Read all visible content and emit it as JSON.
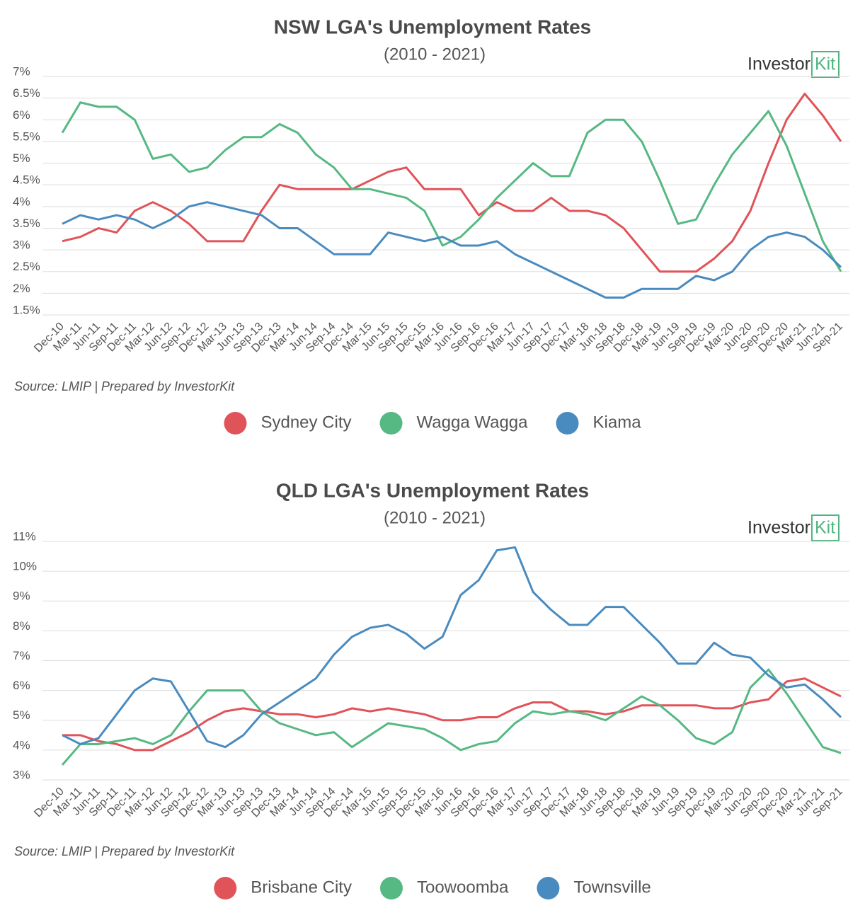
{
  "chart_data": [
    {
      "type": "line",
      "title": "NSW LGA's Unemployment Rates",
      "subtitle": "(2010 - 2021)",
      "logo": "Investor",
      "logo_accent": "Kit",
      "source": "Source: LMIP | Prepared by InvestorKit",
      "categories": [
        "Dec-10",
        "Mar-11",
        "Jun-11",
        "Sep-11",
        "Dec-11",
        "Mar-12",
        "Jun-12",
        "Sep-12",
        "Dec-12",
        "Mar-13",
        "Jun-13",
        "Sep-13",
        "Dec-13",
        "Mar-14",
        "Jun-14",
        "Sep-14",
        "Dec-14",
        "Mar-15",
        "Jun-15",
        "Sep-15",
        "Dec-15",
        "Mar-16",
        "Jun-16",
        "Sep-16",
        "Dec-16",
        "Mar-17",
        "Jun-17",
        "Sep-17",
        "Dec-17",
        "Mar-18",
        "Jun-18",
        "Sep-18",
        "Dec-18",
        "Mar-19",
        "Jun-19",
        "Sep-19",
        "Dec-19",
        "Mar-20",
        "Jun-20",
        "Sep-20",
        "Dec-20",
        "Mar-21",
        "Jun-21",
        "Sep-21"
      ],
      "series": [
        {
          "name": "Sydney City",
          "color": "#e05358",
          "values": [
            3.2,
            3.3,
            3.5,
            3.4,
            3.9,
            4.1,
            3.9,
            3.6,
            3.2,
            3.2,
            3.2,
            3.9,
            4.5,
            4.4,
            4.4,
            4.4,
            4.4,
            4.6,
            4.8,
            4.9,
            4.4,
            4.4,
            4.4,
            3.8,
            4.1,
            3.9,
            3.9,
            4.2,
            3.9,
            3.9,
            3.8,
            3.5,
            3.0,
            2.5,
            2.5,
            2.5,
            2.8,
            3.2,
            3.9,
            5.0,
            6.0,
            6.6,
            6.1,
            5.5
          ]
        },
        {
          "name": "Wagga Wagga",
          "color": "#56b883",
          "values": [
            5.7,
            6.4,
            6.3,
            6.3,
            6.0,
            5.1,
            5.2,
            4.8,
            4.9,
            5.3,
            5.6,
            5.6,
            5.9,
            5.7,
            5.2,
            4.9,
            4.4,
            4.4,
            4.3,
            4.2,
            3.9,
            3.1,
            3.3,
            3.7,
            4.2,
            4.6,
            5.0,
            4.7,
            4.7,
            5.7,
            6.0,
            6.0,
            5.5,
            4.6,
            3.6,
            3.7,
            4.5,
            5.2,
            5.7,
            6.2,
            5.4,
            4.3,
            3.2,
            2.5
          ]
        },
        {
          "name": "Kiama",
          "color": "#4a8bbf",
          "values": [
            3.6,
            3.8,
            3.7,
            3.8,
            3.7,
            3.5,
            3.7,
            4.0,
            4.1,
            4.0,
            3.9,
            3.8,
            3.5,
            3.5,
            3.2,
            2.9,
            2.9,
            2.9,
            3.4,
            3.3,
            3.2,
            3.3,
            3.1,
            3.1,
            3.2,
            2.9,
            2.7,
            2.5,
            2.3,
            2.1,
            1.9,
            1.9,
            2.1,
            2.1,
            2.1,
            2.4,
            2.3,
            2.5,
            3.0,
            3.3,
            3.4,
            3.3,
            3.0,
            2.6
          ]
        }
      ],
      "ylim": [
        1.5,
        7
      ],
      "yticks": [
        {
          "value": 1.5,
          "label": "1.5%"
        },
        {
          "value": 2,
          "label": "2%"
        },
        {
          "value": 2.5,
          "label": "2.5%"
        },
        {
          "value": 3,
          "label": "3%"
        },
        {
          "value": 3.5,
          "label": "3.5%"
        },
        {
          "value": 4,
          "label": "4%"
        },
        {
          "value": 4.5,
          "label": "4.5%"
        },
        {
          "value": 5,
          "label": "5%"
        },
        {
          "value": 5.5,
          "label": "5.5%"
        },
        {
          "value": 6,
          "label": "6%"
        },
        {
          "value": 6.5,
          "label": "6.5%"
        },
        {
          "value": 7,
          "label": "7%"
        }
      ],
      "grid": true,
      "legend": "bottom"
    },
    {
      "type": "line",
      "title": "QLD LGA's Unemployment Rates",
      "subtitle": "(2010 - 2021)",
      "logo": "Investor",
      "logo_accent": "Kit",
      "source": "Source: LMIP | Prepared by InvestorKit",
      "categories": [
        "Dec-10",
        "Mar-11",
        "Jun-11",
        "Sep-11",
        "Dec-11",
        "Mar-12",
        "Jun-12",
        "Sep-12",
        "Dec-12",
        "Mar-13",
        "Jun-13",
        "Sep-13",
        "Dec-13",
        "Mar-14",
        "Jun-14",
        "Sep-14",
        "Dec-14",
        "Mar-15",
        "Jun-15",
        "Sep-15",
        "Dec-15",
        "Mar-16",
        "Jun-16",
        "Sep-16",
        "Dec-16",
        "Mar-17",
        "Jun-17",
        "Sep-17",
        "Dec-17",
        "Mar-18",
        "Jun-18",
        "Sep-18",
        "Dec-18",
        "Mar-19",
        "Jun-19",
        "Sep-19",
        "Dec-19",
        "Mar-20",
        "Jun-20",
        "Sep-20",
        "Dec-20",
        "Mar-21",
        "Jun-21",
        "Sep-21"
      ],
      "series": [
        {
          "name": "Brisbane City",
          "color": "#e05358",
          "values": [
            4.5,
            4.5,
            4.3,
            4.2,
            4.0,
            4.0,
            4.3,
            4.6,
            5.0,
            5.3,
            5.4,
            5.3,
            5.2,
            5.2,
            5.1,
            5.2,
            5.4,
            5.3,
            5.4,
            5.3,
            5.2,
            5.0,
            5.0,
            5.1,
            5.1,
            5.4,
            5.6,
            5.6,
            5.3,
            5.3,
            5.2,
            5.3,
            5.5,
            5.5,
            5.5,
            5.5,
            5.4,
            5.4,
            5.6,
            5.7,
            6.3,
            6.4,
            6.1,
            5.8
          ]
        },
        {
          "name": "Toowoomba",
          "color": "#56b883",
          "values": [
            3.5,
            4.2,
            4.2,
            4.3,
            4.4,
            4.2,
            4.5,
            5.3,
            6.0,
            6.0,
            6.0,
            5.3,
            4.9,
            4.7,
            4.5,
            4.6,
            4.1,
            4.5,
            4.9,
            4.8,
            4.7,
            4.4,
            4.0,
            4.2,
            4.3,
            4.9,
            5.3,
            5.2,
            5.3,
            5.2,
            5.0,
            5.4,
            5.8,
            5.5,
            5.0,
            4.4,
            4.2,
            4.6,
            6.1,
            6.7,
            5.9,
            5.0,
            4.1,
            3.9
          ]
        },
        {
          "name": "Townsville",
          "color": "#4a8bbf",
          "values": [
            4.5,
            4.2,
            4.4,
            5.2,
            6.0,
            6.4,
            6.3,
            5.3,
            4.3,
            4.1,
            4.5,
            5.2,
            5.6,
            6.0,
            6.4,
            7.2,
            7.8,
            8.1,
            8.2,
            7.9,
            7.4,
            7.8,
            9.2,
            9.7,
            10.7,
            10.8,
            9.3,
            8.7,
            8.2,
            8.2,
            8.8,
            8.8,
            8.2,
            7.6,
            6.9,
            6.9,
            7.6,
            7.2,
            7.1,
            6.5,
            6.1,
            6.2,
            5.7,
            5.1
          ]
        }
      ],
      "ylim": [
        3,
        11
      ],
      "yticks": [
        {
          "value": 3,
          "label": "3%"
        },
        {
          "value": 4,
          "label": "4%"
        },
        {
          "value": 5,
          "label": "5%"
        },
        {
          "value": 6,
          "label": "6%"
        },
        {
          "value": 7,
          "label": "7%"
        },
        {
          "value": 8,
          "label": "8%"
        },
        {
          "value": 9,
          "label": "9%"
        },
        {
          "value": 10,
          "label": "10%"
        },
        {
          "value": 11,
          "label": "11%"
        }
      ],
      "grid": true,
      "legend": "bottom"
    }
  ]
}
